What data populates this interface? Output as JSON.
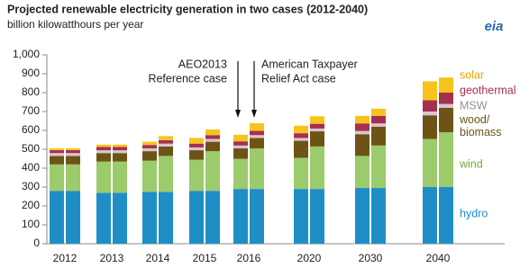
{
  "chart_data": {
    "type": "stacked-bar",
    "title": "Projected renewable electricity generation in two cases (2012-2040)",
    "subtitle": "billion kilowatthours per year",
    "logo": "eia",
    "categories": [
      "2012",
      null,
      "2013",
      null,
      "2014",
      null,
      "2015",
      null,
      "2016",
      null,
      "2020",
      null,
      "2030",
      null,
      "2040",
      null
    ],
    "annotations": [
      [
        "AEO2013",
        "Reference case"
      ],
      [
        "American Taxpayer",
        "Relief Act case"
      ]
    ],
    "ylim": [
      0,
      1000
    ],
    "yticks": [
      0,
      100,
      200,
      300,
      400,
      500,
      600,
      700,
      800,
      900,
      {
        "value": 1000,
        "label": "1,000"
      }
    ],
    "grid": false,
    "series": [
      {
        "name": "hydro",
        "color": "#1f8ec7",
        "label_color": "#1f8ec7",
        "values": [
          280,
          280,
          270,
          270,
          275,
          275,
          280,
          280,
          290,
          290,
          290,
          290,
          295,
          295,
          300,
          300
        ]
      },
      {
        "name": "wind",
        "color": "#9bcb6a",
        "label_color": "#6aae3a",
        "values": [
          140,
          140,
          165,
          165,
          165,
          190,
          165,
          210,
          160,
          215,
          165,
          225,
          170,
          225,
          255,
          290
        ]
      },
      {
        "name": "wood/biomass",
        "color": "#6e5317",
        "label_color": "#6e5317",
        "values": [
          45,
          45,
          45,
          45,
          50,
          50,
          50,
          50,
          55,
          55,
          90,
          80,
          115,
          100,
          125,
          130
        ]
      },
      {
        "name": "MSW",
        "color": "#d8c6d0",
        "label_color": "#8f8f99",
        "values": [
          15,
          15,
          15,
          15,
          15,
          15,
          15,
          15,
          15,
          15,
          15,
          15,
          17,
          17,
          20,
          20
        ]
      },
      {
        "name": "geothermal",
        "color": "#a4304f",
        "label_color": "#a4304f",
        "values": [
          15,
          15,
          17,
          17,
          18,
          18,
          20,
          20,
          22,
          23,
          25,
          25,
          40,
          40,
          60,
          60
        ]
      },
      {
        "name": "solar",
        "color": "#f9c31d",
        "label_color": "#e8a400",
        "values": [
          10,
          10,
          13,
          13,
          17,
          22,
          30,
          30,
          35,
          40,
          40,
          40,
          40,
          38,
          100,
          80
        ]
      }
    ]
  }
}
